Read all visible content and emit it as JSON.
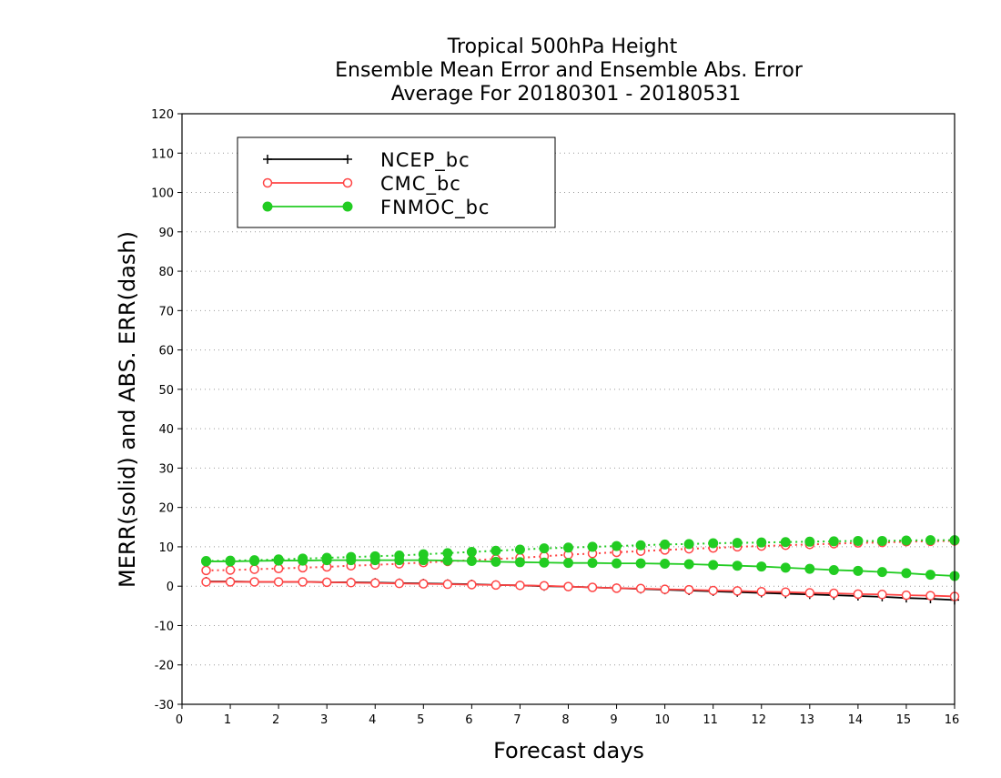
{
  "chart_data": {
    "type": "line",
    "title_lines": [
      "Tropical 500hPa Height",
      "Ensemble Mean Error and Ensemble Abs. Error",
      "Average For 20180301 - 20180531"
    ],
    "xlabel": "Forecast days",
    "ylabel": "MERR(solid) and ABS. ERR(dash)",
    "xlim": [
      0,
      16
    ],
    "ylim": [
      -30,
      120
    ],
    "x_ticks": [
      0,
      1,
      2,
      3,
      4,
      5,
      6,
      7,
      8,
      9,
      10,
      11,
      12,
      13,
      14,
      15,
      16
    ],
    "y_ticks": [
      -30,
      -20,
      -10,
      0,
      10,
      20,
      30,
      40,
      50,
      60,
      70,
      80,
      90,
      100,
      110,
      120
    ],
    "grid": "horizontal dotted",
    "legend_position": "top-left",
    "x": [
      0.5,
      1,
      1.5,
      2,
      2.5,
      3,
      3.5,
      4,
      4.5,
      5,
      5.5,
      6,
      6.5,
      7,
      7.5,
      8,
      8.5,
      9,
      9.5,
      10,
      10.5,
      11,
      11.5,
      12,
      12.5,
      13,
      13.5,
      14,
      14.5,
      15,
      15.5,
      16
    ],
    "series": [
      {
        "name": "NCEP_bc",
        "color": "#000000",
        "marker": "plus",
        "merr": [
          1.2,
          1.2,
          1.1,
          1.1,
          1.1,
          1.0,
          1.0,
          0.9,
          0.8,
          0.7,
          0.6,
          0.5,
          0.3,
          0.2,
          0.0,
          -0.1,
          -0.3,
          -0.5,
          -0.7,
          -0.9,
          -1.1,
          -1.3,
          -1.5,
          -1.7,
          -1.9,
          -2.1,
          -2.3,
          -2.5,
          -2.7,
          -3.0,
          -3.2,
          -3.5
        ],
        "abs_err": null
      },
      {
        "name": "CMC_bc",
        "color": "#ff4444",
        "marker": "open-circle",
        "merr": [
          1.1,
          1.1,
          1.1,
          1.1,
          1.1,
          1.0,
          0.9,
          0.8,
          0.7,
          0.6,
          0.5,
          0.4,
          0.3,
          0.2,
          0.1,
          -0.1,
          -0.3,
          -0.5,
          -0.6,
          -0.8,
          -0.9,
          -1.1,
          -1.2,
          -1.4,
          -1.5,
          -1.7,
          -1.8,
          -2.0,
          -2.1,
          -2.3,
          -2.4,
          -2.6
        ],
        "abs_err": [
          4.0,
          4.1,
          4.3,
          4.5,
          4.7,
          4.9,
          5.2,
          5.4,
          5.7,
          6.0,
          6.3,
          6.6,
          6.9,
          7.2,
          7.6,
          8.0,
          8.3,
          8.6,
          8.9,
          9.2,
          9.5,
          9.7,
          10.0,
          10.2,
          10.4,
          10.6,
          10.8,
          11.0,
          11.1,
          11.3,
          11.4,
          11.5
        ]
      },
      {
        "name": "FNMOC_bc",
        "color": "#22cc22",
        "marker": "filled-circle",
        "merr": [
          6.3,
          6.3,
          6.4,
          6.5,
          6.5,
          6.6,
          6.6,
          6.6,
          6.6,
          6.6,
          6.5,
          6.4,
          6.2,
          6.1,
          6.0,
          5.9,
          5.9,
          5.8,
          5.8,
          5.7,
          5.6,
          5.4,
          5.2,
          5.0,
          4.7,
          4.4,
          4.1,
          3.9,
          3.6,
          3.3,
          2.9,
          2.6
        ],
        "abs_err": [
          6.4,
          6.5,
          6.6,
          6.8,
          7.0,
          7.2,
          7.4,
          7.6,
          7.8,
          8.1,
          8.4,
          8.7,
          9.0,
          9.3,
          9.6,
          9.8,
          10.0,
          10.2,
          10.4,
          10.6,
          10.7,
          10.9,
          11.0,
          11.1,
          11.2,
          11.3,
          11.4,
          11.5,
          11.5,
          11.6,
          11.7,
          11.7
        ]
      }
    ]
  }
}
